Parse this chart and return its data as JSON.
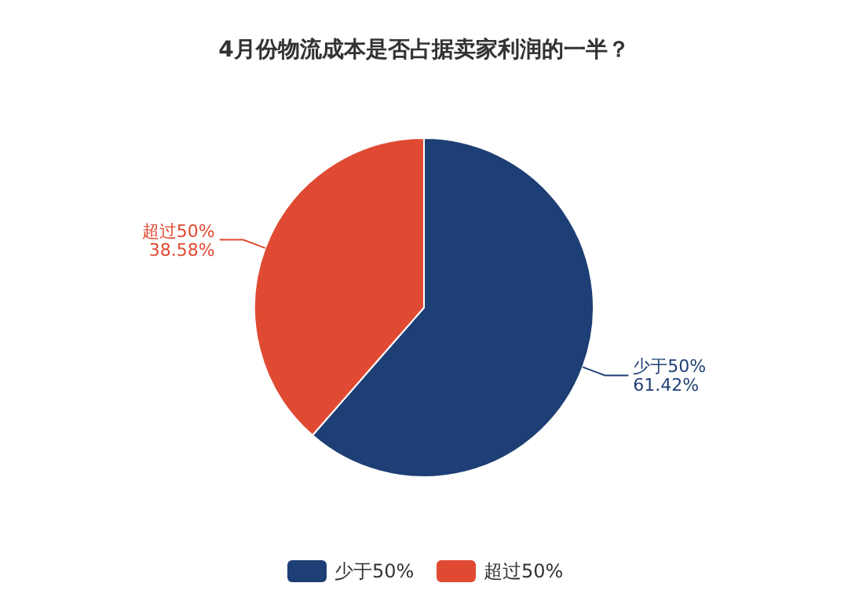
{
  "chart_data": {
    "type": "pie",
    "title": "4月份物流成本是否占据卖家利润的一半？",
    "categories": [
      "少于50%",
      "超过50%"
    ],
    "values": [
      61.42,
      38.58
    ],
    "colors": [
      "#1e3f75",
      "#e04a33"
    ],
    "value_labels": [
      "61.42%",
      "38.58%"
    ],
    "legend": "bottom"
  }
}
